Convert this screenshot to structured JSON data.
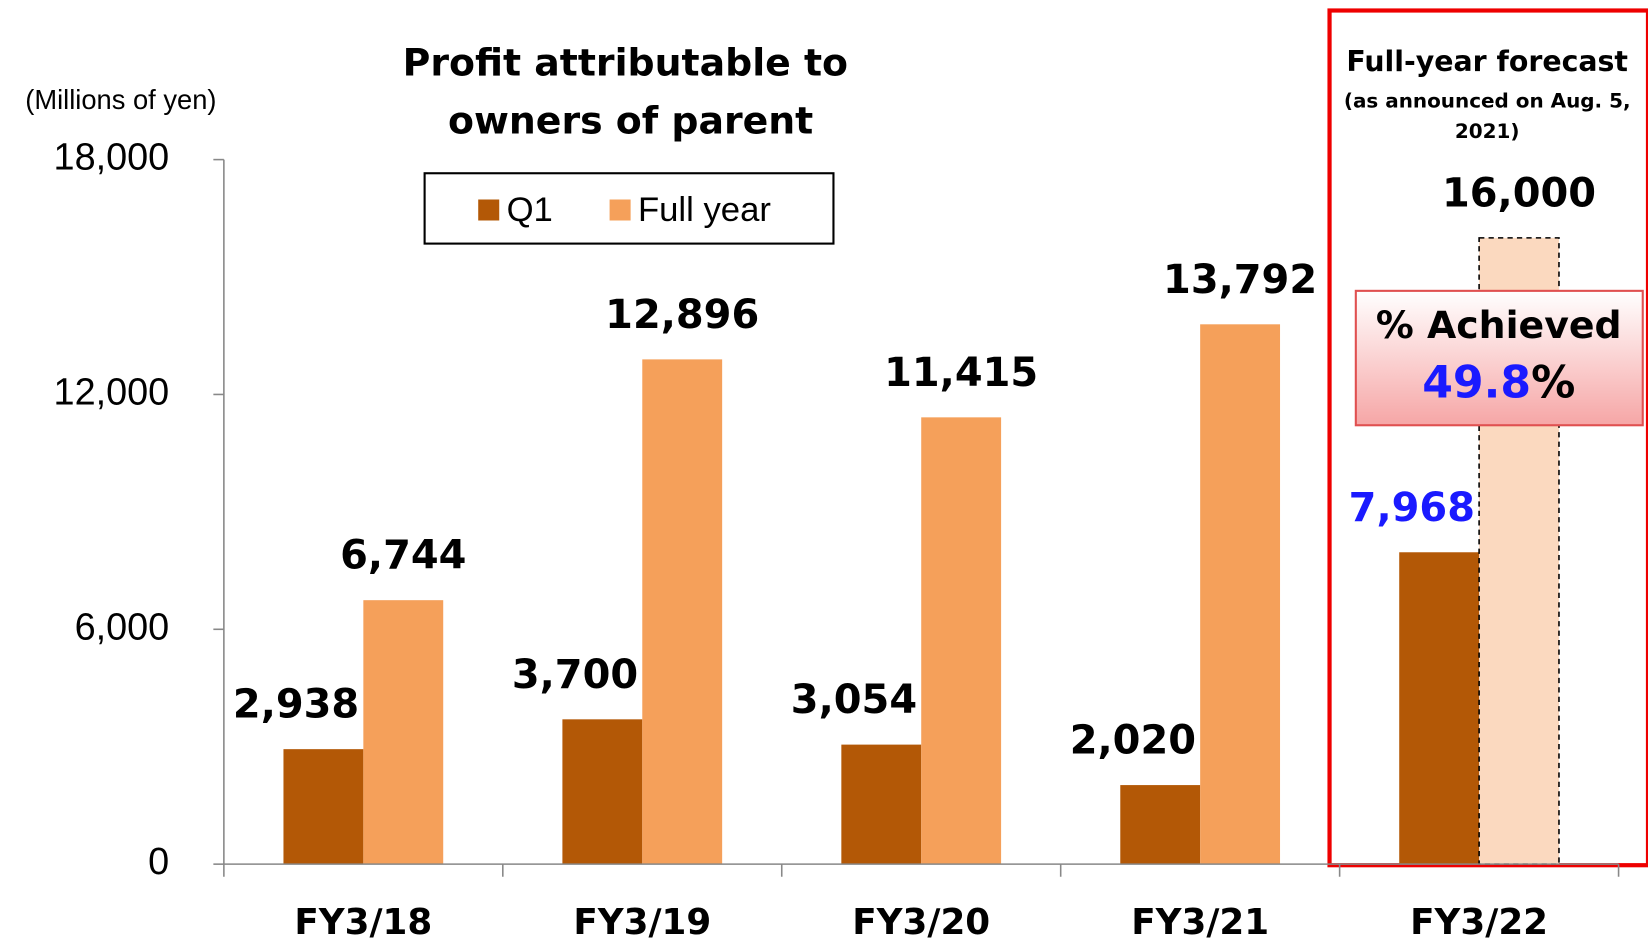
{
  "chart_data": {
    "type": "bar",
    "title": [
      "Profit attributable to",
      "owners of parent"
    ],
    "y_axis_label": "(Millions of yen)",
    "categories": [
      "FY3/18",
      "FY3/19",
      "FY3/20",
      "FY3/21",
      "FY3/22"
    ],
    "series": [
      {
        "name": "Q1",
        "color": "#b35806",
        "values": [
          2938,
          3700,
          3054,
          2020,
          7968
        ],
        "value_labels": [
          "2,938",
          "3,700",
          "3,054",
          "2,020",
          "7,968"
        ],
        "label_colors": [
          "#000000",
          "#000000",
          "#000000",
          "#000000",
          "#1a1aff"
        ]
      },
      {
        "name": "Full year",
        "color": "#f5a05a",
        "values": [
          6744,
          12896,
          11415,
          13792,
          16000
        ],
        "value_labels": [
          "6,744",
          "12,896",
          "11,415",
          "13,792",
          "16,000"
        ],
        "colors": [
          "#f5a05a",
          "#f5a05a",
          "#f5a05a",
          "#f5a05a",
          "#fbd9bf"
        ],
        "dashed": [
          false,
          false,
          false,
          false,
          true
        ]
      }
    ],
    "ylim": [
      0,
      18000
    ],
    "yticks": [
      0,
      {
        "value": 6000,
        "label": "6,000"
      },
      {
        "value": 12000,
        "label": "12,000"
      },
      {
        "value": 18000,
        "label": "18,000"
      }
    ],
    "forecast": {
      "title": "Full-year forecast",
      "note": [
        "(as announced on Aug. 5,",
        "2021)"
      ]
    },
    "achieved": {
      "title": "% Achieved",
      "value": 49.8,
      "unit": "%"
    }
  }
}
